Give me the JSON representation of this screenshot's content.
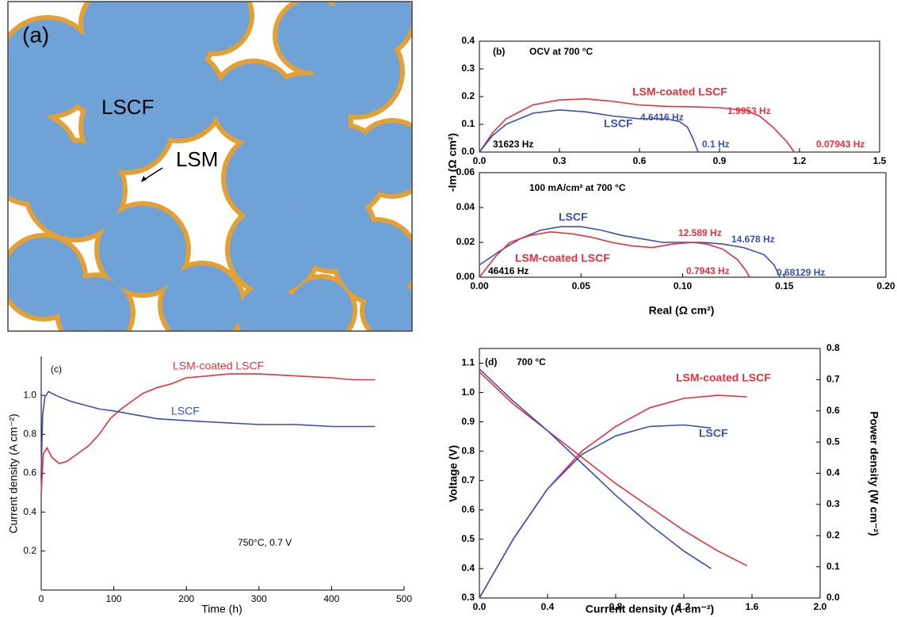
{
  "schematic": {
    "panel_label": "(a)",
    "labels": [
      "LSCF",
      "LSM"
    ]
  },
  "chart_data": [
    {
      "type": "line",
      "ylabel": "-Im (Ω cm²)",
      "annotations": [
        "(b)",
        "OCV at 700 °C",
        "1.9953 Hz",
        "4.6416 Hz",
        "31623 Hz",
        "0.1 Hz",
        "0.07943 Hz"
      ],
      "xlim": [
        0,
        1.5
      ],
      "xticks": [
        {
          "value": 0,
          "label": "0.0"
        },
        0.3,
        0.6,
        0.9,
        1.2,
        1.5
      ],
      "ylim": [
        0,
        0.4
      ],
      "yticks": [
        {
          "value": 0,
          "label": "0.0"
        },
        0.1,
        0.2,
        0.3,
        0.4
      ],
      "series": [
        {
          "name": "LSM-coated LSCF",
          "color": "#e8303a",
          "x": [
            0,
            0.05,
            0.1,
            0.2,
            0.3,
            0.4,
            0.5,
            0.6,
            0.7,
            0.8,
            0.9,
            1.0,
            1.05,
            1.1,
            1.15,
            1.18
          ],
          "values": [
            0,
            0.07,
            0.12,
            0.17,
            0.188,
            0.192,
            0.183,
            0.17,
            0.165,
            0.163,
            0.16,
            0.15,
            0.13,
            0.09,
            0.04,
            0
          ]
        },
        {
          "name": "LSCF",
          "color": "#3a4fb5",
          "x": [
            0,
            0.05,
            0.1,
            0.2,
            0.3,
            0.4,
            0.5,
            0.6,
            0.7,
            0.75,
            0.78,
            0.8,
            0.82
          ],
          "values": [
            0,
            0.06,
            0.1,
            0.14,
            0.152,
            0.145,
            0.13,
            0.12,
            0.12,
            0.11,
            0.09,
            0.05,
            0
          ]
        }
      ]
    },
    {
      "type": "line",
      "xlabel": "Real (Ω cm²)",
      "annotations": [
        "100 mA/cm² at 700 °C",
        "12.589 Hz",
        "14.678 Hz",
        "46416 Hz",
        "0.7943 Hz",
        "0.68129 Hz"
      ],
      "xlim": [
        0,
        0.2
      ],
      "xticks": [
        {
          "value": 0,
          "label": "0.00"
        },
        0.05,
        {
          "value": 0.1,
          "label": "0.10"
        },
        0.15,
        {
          "value": 0.2,
          "label": "0.20"
        }
      ],
      "ylim": [
        0,
        0.06
      ],
      "yticks": [
        {
          "value": 0,
          "label": "0.00"
        },
        0.02,
        0.04,
        0.06
      ],
      "series": [
        {
          "name": "LSCF",
          "color": "#3a4fb5",
          "x": [
            0,
            0.01,
            0.02,
            0.03,
            0.04,
            0.05,
            0.06,
            0.07,
            0.08,
            0.09,
            0.1,
            0.11,
            0.12,
            0.13,
            0.14,
            0.145,
            0.148
          ],
          "values": [
            0.007,
            0.015,
            0.022,
            0.027,
            0.029,
            0.029,
            0.027,
            0.024,
            0.022,
            0.02,
            0.02,
            0.02,
            0.019,
            0.017,
            0.013,
            0.007,
            0
          ]
        },
        {
          "name": "LSM-coated LSCF",
          "color": "#e8303a",
          "x": [
            0,
            0.008,
            0.015,
            0.025,
            0.035,
            0.045,
            0.055,
            0.065,
            0.075,
            0.085,
            0.095,
            0.105,
            0.112,
            0.12,
            0.127,
            0.131,
            0.133
          ],
          "values": [
            0,
            0.012,
            0.02,
            0.024,
            0.026,
            0.025,
            0.023,
            0.02,
            0.018,
            0.017,
            0.019,
            0.02,
            0.019,
            0.016,
            0.01,
            0.004,
            0
          ]
        }
      ]
    },
    {
      "type": "line",
      "xlabel": "Time (h)",
      "ylabel": "Current density (A cm⁻²)",
      "annotations": [
        "(c)",
        "750°C, 0.7 V"
      ],
      "xlim": [
        0,
        500
      ],
      "xticks": [
        0,
        100,
        200,
        300,
        400,
        500
      ],
      "ylim": [
        0,
        1.2
      ],
      "yticks": [
        0.2,
        0.4,
        0.6,
        0.8,
        {
          "value": 1,
          "label": "1.0"
        }
      ],
      "series": [
        {
          "name": "LSM-coated LSCF",
          "color": "#e8303a",
          "x": [
            0,
            3,
            8,
            15,
            25,
            35,
            50,
            65,
            80,
            95,
            110,
            125,
            140,
            160,
            180,
            200,
            230,
            260,
            300,
            350,
            400,
            430,
            460
          ],
          "values": [
            0.5,
            0.7,
            0.73,
            0.68,
            0.65,
            0.66,
            0.7,
            0.74,
            0.8,
            0.88,
            0.93,
            0.97,
            1.01,
            1.04,
            1.06,
            1.09,
            1.1,
            1.11,
            1.11,
            1.1,
            1.09,
            1.08,
            1.08
          ]
        },
        {
          "name": "LSCF",
          "color": "#3a4fb5",
          "x": [
            0,
            2,
            5,
            10,
            20,
            40,
            60,
            80,
            100,
            130,
            160,
            200,
            250,
            300,
            350,
            400,
            430,
            460
          ],
          "values": [
            0.6,
            0.9,
            0.99,
            1.02,
            1.0,
            0.97,
            0.95,
            0.93,
            0.92,
            0.9,
            0.88,
            0.87,
            0.86,
            0.85,
            0.85,
            0.84,
            0.84,
            0.84
          ]
        }
      ]
    },
    {
      "type": "line",
      "xlabel": "Current density (A cm⁻²)",
      "ylabel": "Voltage (V)",
      "y2label": "Power density (W cm⁻²)",
      "annotations": [
        "(d)",
        "700 °C"
      ],
      "xlim": [
        0,
        2
      ],
      "xticks": [
        {
          "value": 0,
          "label": "0.0"
        },
        0.4,
        0.8,
        1.2,
        1.6,
        {
          "value": 2,
          "label": "2.0"
        }
      ],
      "ylim": [
        0.3,
        1.15
      ],
      "yticks": [
        0.3,
        0.4,
        0.5,
        0.6,
        0.7,
        0.8,
        0.9,
        {
          "value": 1,
          "label": "1.0"
        },
        1.1
      ],
      "y2lim": [
        0,
        0.8
      ],
      "y2ticks": [
        {
          "value": 0,
          "label": "0.0"
        },
        0.1,
        0.2,
        0.3,
        0.4,
        0.5,
        0.6,
        0.7,
        0.8
      ],
      "series": [
        {
          "color": "#e8303a",
          "x": [
            0,
            0.2,
            0.4,
            0.6,
            0.8,
            1.0,
            1.2,
            1.4,
            1.57
          ],
          "values": [
            1.07,
            0.96,
            0.87,
            0.78,
            0.69,
            0.61,
            0.53,
            0.46,
            0.41
          ]
        },
        {
          "color": "#3a4fb5",
          "x": [
            0,
            0.2,
            0.4,
            0.6,
            0.8,
            1.0,
            1.2,
            1.36
          ],
          "values": [
            1.08,
            0.97,
            0.87,
            0.76,
            0.65,
            0.55,
            0.46,
            0.4
          ]
        },
        {
          "name": "LSM-coated LSCF",
          "color": "#e8303a",
          "axis": "y2",
          "x": [
            0,
            0.2,
            0.4,
            0.6,
            0.8,
            1.0,
            1.2,
            1.4,
            1.57
          ],
          "values": [
            0,
            0.19,
            0.35,
            0.47,
            0.55,
            0.61,
            0.64,
            0.65,
            0.645
          ]
        },
        {
          "name": "LSCF",
          "color": "#3a4fb5",
          "axis": "y2",
          "x": [
            0,
            0.2,
            0.4,
            0.6,
            0.8,
            1.0,
            1.2,
            1.36
          ],
          "values": [
            0,
            0.19,
            0.35,
            0.46,
            0.52,
            0.55,
            0.555,
            0.545
          ]
        }
      ]
    }
  ]
}
